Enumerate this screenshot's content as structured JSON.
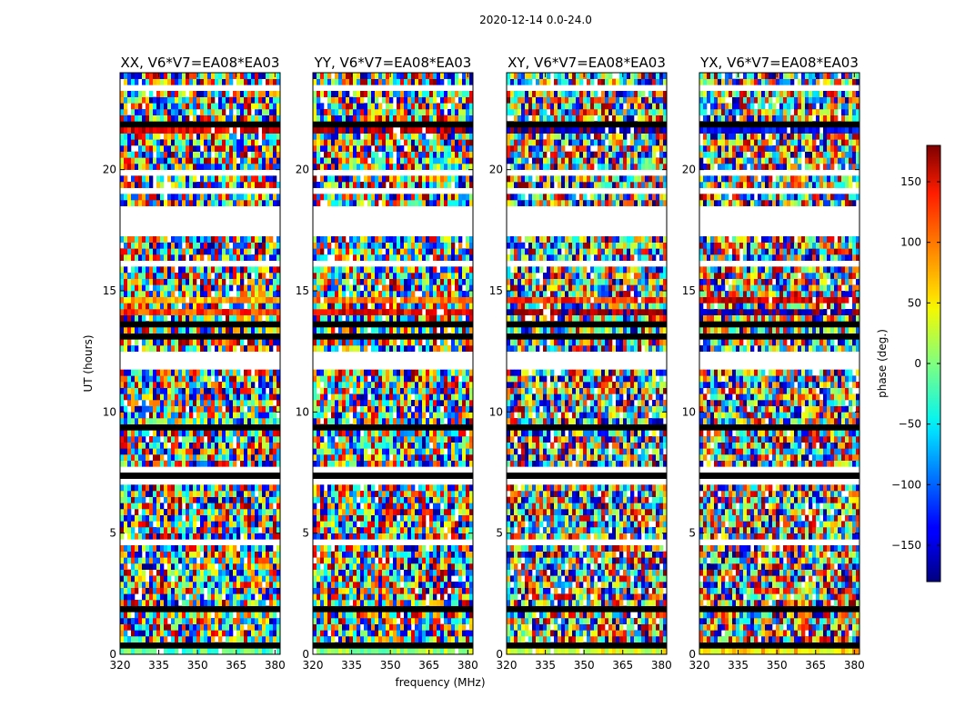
{
  "chart_data": {
    "type": "heatmap",
    "suptitle": "2020-12-14 0.0-24.0",
    "xlabel": "frequency (MHz)",
    "ylabel": "UT (hours)",
    "xlim": [
      320,
      382
    ],
    "ylim": [
      0,
      24
    ],
    "xticks": [
      320,
      335,
      350,
      365,
      380
    ],
    "yticks": [
      0,
      5,
      10,
      15,
      20
    ],
    "panels": [
      {
        "title": "XX, V6*V7=EA08*EA03"
      },
      {
        "title": "YY, V6*V7=EA08*EA03"
      },
      {
        "title": "XY, V6*V7=EA08*EA03"
      },
      {
        "title": "YX, V6*V7=EA08*EA03"
      }
    ],
    "colorbar": {
      "label": "phase (deg.)",
      "range": [
        -180,
        180
      ],
      "ticks": [
        150,
        100,
        50,
        0,
        -50,
        -100,
        -150
      ],
      "tick_labels": [
        "150",
        "100",
        "50",
        "0",
        "−50",
        "−100",
        "−150"
      ],
      "colormap": "jet"
    },
    "flagged_ut_ranges": [
      [
        17.3,
        18.3
      ],
      [
        11.7,
        12.0
      ],
      [
        7.1,
        7.2
      ]
    ],
    "masked_ut_ranges": [
      [
        9.2,
        9.6
      ]
    ]
  }
}
